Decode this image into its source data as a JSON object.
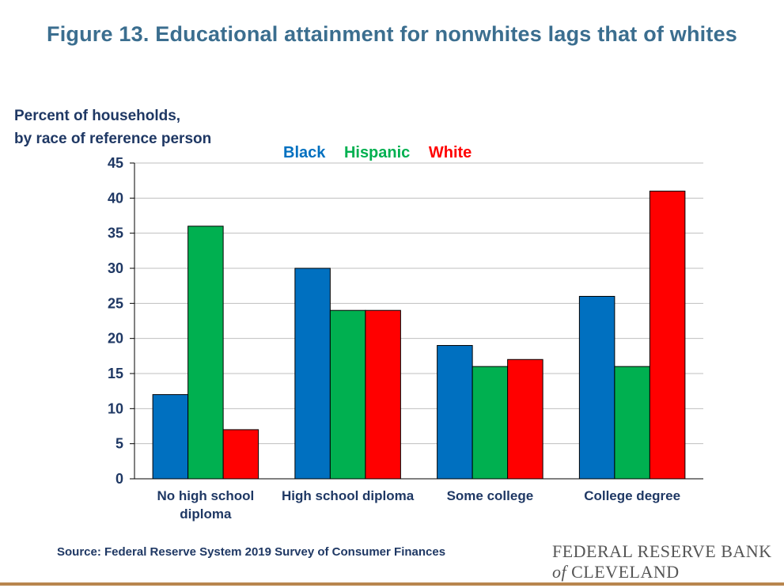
{
  "title": "Figure 13. Educational attainment for nonwhites lags that of whites",
  "ylabel_lines": [
    "Percent of households,",
    "by race of reference person"
  ],
  "source": "Source: Federal Reserve System 2019 Survey of Consumer Finances",
  "logo": {
    "line1": "FEDERAL RESERVE BANK",
    "of": "of",
    "line2": "CLEVELAND"
  },
  "chart_data": {
    "type": "bar",
    "title": "Figure 13. Educational attainment for nonwhites lags that of whites",
    "ylabel": "Percent of households, by race of reference person",
    "xlabel": "",
    "categories": [
      [
        "No high school",
        "diploma"
      ],
      [
        "High school diploma"
      ],
      [
        "Some college"
      ],
      [
        "College degree"
      ]
    ],
    "series": [
      {
        "name": "Black",
        "color": "#0070c0",
        "values": [
          12,
          30,
          19,
          26
        ]
      },
      {
        "name": "Hispanic",
        "color": "#00b050",
        "values": [
          36,
          24,
          16,
          16
        ]
      },
      {
        "name": "White",
        "color": "#ff0000",
        "values": [
          7,
          24,
          17,
          41
        ]
      }
    ],
    "ylim": [
      0,
      45
    ],
    "yticks": [
      0,
      5,
      10,
      15,
      20,
      25,
      30,
      35,
      40,
      45
    ],
    "grid": true,
    "legend": "top-center"
  }
}
